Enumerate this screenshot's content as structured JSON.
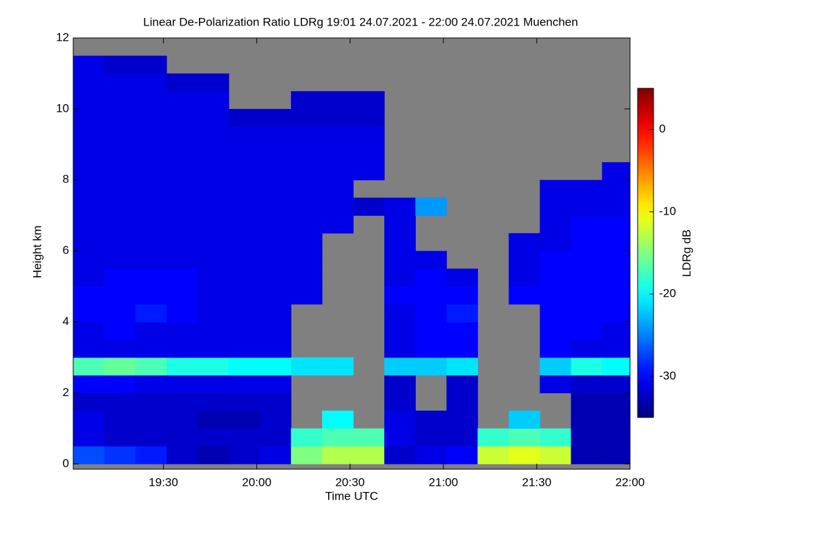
{
  "chart_data": {
    "type": "heatmap",
    "title": "Linear De-Polarization Ratio LDRg   19:01 24.07.2021 - 22:00 24.07.2021 Muenchen",
    "x_label": "Time UTC",
    "y_label": "Height km",
    "colorbar_label": "LDRg dB",
    "colormap": "jet",
    "missing_color": "#808080",
    "xlim": [
      1141,
      1320
    ],
    "xticks": [
      {
        "value": 1170,
        "label": "19:30"
      },
      {
        "value": 1200,
        "label": "20:00"
      },
      {
        "value": 1230,
        "label": "20:30"
      },
      {
        "value": 1260,
        "label": "21:00"
      },
      {
        "value": 1290,
        "label": "21:30"
      },
      {
        "value": 1320,
        "label": "22:00"
      }
    ],
    "ylim": [
      -0.15,
      12
    ],
    "yticks": [
      0,
      2,
      4,
      6,
      8,
      10,
      12
    ],
    "zlim": [
      -35,
      5
    ],
    "zticks": [
      0,
      -10,
      -20,
      -30
    ],
    "x_bins": [
      1141,
      1151,
      1161,
      1171,
      1181,
      1191,
      1201,
      1211,
      1221,
      1231,
      1241,
      1251,
      1261,
      1271,
      1281,
      1291,
      1301,
      1311,
      1320
    ],
    "y_bins": [
      0,
      0.5,
      1,
      1.5,
      2,
      2.5,
      3,
      3.5,
      4,
      4.5,
      5,
      5.5,
      6,
      6.5,
      7,
      7.5,
      8,
      8.5,
      9,
      9.5,
      10,
      10.5,
      11,
      11.5,
      12
    ],
    "z": [
      [
        -27,
        -31,
        -31,
        -32,
        -30,
        -17,
        -31,
        -31,
        -30,
        -30,
        -31,
        -31,
        -31,
        -31,
        -31,
        -31,
        -31,
        -31,
        -31,
        -31,
        -31,
        -31,
        -31,
        null
      ],
      [
        -28,
        -32,
        -32,
        -32,
        -30,
        -16,
        -31,
        -30,
        -30,
        -30,
        -30,
        -31,
        -31,
        -31,
        -31,
        -31,
        -31,
        -31,
        -31,
        -31,
        -31,
        -31,
        -32,
        null
      ],
      [
        -29,
        -32,
        -32,
        -32,
        -31,
        -17,
        -31,
        -31,
        -29,
        -30,
        -30,
        -31,
        -31,
        -31,
        -31,
        -31,
        -31,
        -31,
        -31,
        -31,
        -31,
        -31,
        -32,
        null
      ],
      [
        -32,
        -32,
        -32,
        -32,
        -31,
        -19,
        -31,
        -31,
        -30,
        -30,
        -30,
        -31,
        -31,
        -31,
        -31,
        -31,
        -31,
        -31,
        -31,
        -31,
        -31,
        -32,
        null,
        null
      ],
      [
        -33,
        -32,
        -33,
        -32,
        -31,
        -19,
        -31,
        -31,
        -31,
        -31,
        -31,
        -31,
        -31,
        -31,
        -31,
        -31,
        -31,
        -31,
        -31,
        -31,
        -31,
        -32,
        null,
        null
      ],
      [
        -32,
        -32,
        -33,
        -32,
        -31,
        -20,
        -31,
        -31,
        -31,
        -31,
        -31,
        -31,
        -31,
        -31,
        -31,
        -31,
        -31,
        -31,
        -31,
        -32,
        null,
        null,
        null,
        null
      ],
      [
        -31,
        -32,
        -32,
        -32,
        -31,
        -20,
        -31,
        -31,
        -31,
        -31,
        -31,
        -31,
        -31,
        -31,
        -31,
        -31,
        -31,
        -31,
        -31,
        -32,
        null,
        null,
        null,
        null
      ],
      [
        -15,
        -18,
        null,
        null,
        null,
        -21,
        null,
        null,
        null,
        -31,
        -31,
        -31,
        -31,
        -31,
        -31,
        -31,
        -31,
        -31,
        -31,
        -32,
        -32,
        null,
        null,
        null
      ],
      [
        -13,
        -17,
        -20,
        null,
        null,
        -21,
        null,
        null,
        null,
        null,
        null,
        null,
        null,
        -31,
        -31,
        -31,
        -31,
        -31,
        -31,
        -32,
        -32,
        null,
        null,
        null
      ],
      [
        -13,
        -17,
        null,
        null,
        null,
        null,
        null,
        null,
        null,
        null,
        null,
        null,
        null,
        null,
        -32,
        null,
        -31,
        -31,
        -31,
        -32,
        -32,
        null,
        null,
        null
      ],
      [
        -32,
        -31,
        -31,
        -32,
        -32,
        -22,
        -31,
        -31,
        -31,
        -30,
        -31,
        -31,
        -31,
        -31,
        -31,
        null,
        null,
        null,
        null,
        null,
        null,
        null,
        null,
        null
      ],
      [
        -31,
        -32,
        -32,
        null,
        null,
        -22,
        -30,
        -30,
        -30,
        -30,
        -30,
        -31,
        null,
        null,
        -24,
        null,
        null,
        null,
        null,
        null,
        null,
        null,
        null,
        null
      ],
      [
        -30,
        -32,
        -32,
        -32,
        -32,
        -21,
        -30,
        -30,
        -29,
        -30,
        -31,
        null,
        null,
        null,
        null,
        null,
        null,
        null,
        null,
        null,
        null,
        null,
        null,
        null
      ],
      [
        -12,
        -18,
        null,
        null,
        null,
        null,
        null,
        null,
        null,
        null,
        null,
        null,
        null,
        null,
        null,
        null,
        null,
        null,
        null,
        null,
        null,
        null,
        null,
        null
      ],
      [
        -11,
        -17,
        -22,
        null,
        null,
        null,
        null,
        null,
        null,
        -30,
        -31,
        -31,
        -31,
        null,
        null,
        null,
        null,
        null,
        null,
        null,
        null,
        null,
        null,
        null
      ],
      [
        -12,
        -18,
        null,
        null,
        -31,
        -22,
        -30,
        -30,
        -30,
        -30,
        -30,
        -30,
        -31,
        -31,
        -31,
        -31,
        null,
        null,
        null,
        null,
        null,
        null,
        null,
        null
      ],
      [
        -33,
        -33,
        -33,
        -33,
        -32,
        -19,
        -31,
        -30,
        -30,
        -30,
        -30,
        -30,
        -30,
        -30,
        -31,
        -31,
        null,
        null,
        null,
        null,
        null,
        null,
        null,
        null
      ],
      [
        -33,
        -33,
        -33,
        -33,
        -32,
        -20,
        -31,
        -31,
        -30,
        -30,
        -30,
        -30,
        -30,
        -30,
        -31,
        -31,
        -31,
        null,
        null,
        null,
        null,
        null,
        null,
        null
      ]
    ]
  }
}
